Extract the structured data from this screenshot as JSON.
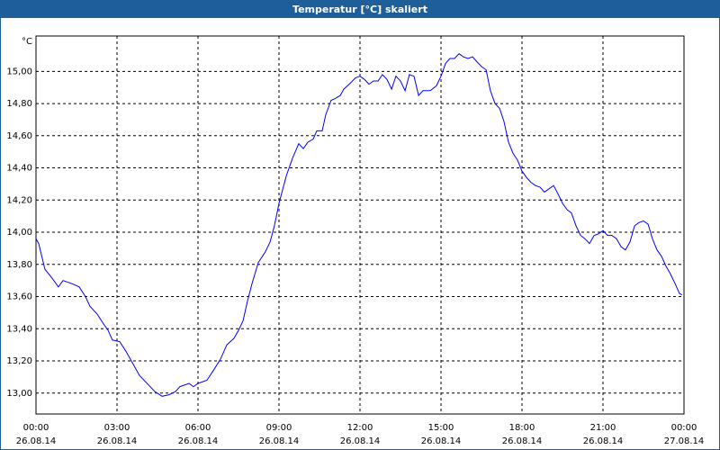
{
  "chart_data": {
    "type": "line",
    "title": "Temperatur [°C] skaliert",
    "y_label": "°C",
    "color": "#0000ff",
    "grid": true,
    "x": [
      0,
      0.1,
      0.33,
      0.57,
      0.83,
      1,
      1.33,
      1.6,
      1.83,
      2,
      2.27,
      2.5,
      2.67,
      2.83,
      3.1,
      3.33,
      3.6,
      3.83,
      4.17,
      4.4,
      4.67,
      4.93,
      5.17,
      5.33,
      5.67,
      5.83,
      6,
      6.33,
      6.57,
      6.83,
      7.07,
      7.33,
      7.5,
      7.67,
      7.83,
      8,
      8.23,
      8.5,
      8.67,
      8.83,
      9,
      9.27,
      9.5,
      9.73,
      9.9,
      10.07,
      10.27,
      10.4,
      10.6,
      10.73,
      10.93,
      11.07,
      11.27,
      11.4,
      11.6,
      11.83,
      12,
      12.17,
      12.33,
      12.5,
      12.67,
      12.83,
      13,
      13.17,
      13.33,
      13.5,
      13.67,
      13.83,
      14,
      14.17,
      14.33,
      14.6,
      14.83,
      15,
      15.17,
      15.33,
      15.5,
      15.67,
      15.83,
      16,
      16.17,
      16.33,
      16.5,
      16.67,
      16.83,
      17,
      17.17,
      17.33,
      17.5,
      17.67,
      17.83,
      18,
      18.17,
      18.33,
      18.5,
      18.67,
      18.83,
      19,
      19.17,
      19.33,
      19.5,
      19.67,
      19.83,
      20,
      20.17,
      20.33,
      20.5,
      20.67,
      20.83,
      21,
      21.17,
      21.33,
      21.5,
      21.67,
      21.83,
      22,
      22.17,
      22.33,
      22.5,
      22.67,
      22.83,
      23,
      23.17,
      23.33,
      23.5,
      23.67,
      23.83,
      23.93
    ],
    "values": [
      13.96,
      13.93,
      13.77,
      13.72,
      13.66,
      13.7,
      13.68,
      13.66,
      13.6,
      13.54,
      13.49,
      13.43,
      13.39,
      13.33,
      13.32,
      13.26,
      13.18,
      13.11,
      13.05,
      13.01,
      12.98,
      12.99,
      13.01,
      13.04,
      13.06,
      13.04,
      13.06,
      13.08,
      13.14,
      13.21,
      13.3,
      13.34,
      13.39,
      13.45,
      13.57,
      13.68,
      13.81,
      13.88,
      13.94,
      14.04,
      14.18,
      14.35,
      14.46,
      14.55,
      14.52,
      14.56,
      14.58,
      14.63,
      14.63,
      14.73,
      14.82,
      14.83,
      14.85,
      14.89,
      14.92,
      14.96,
      14.97,
      14.95,
      14.92,
      14.94,
      14.94,
      14.98,
      14.95,
      14.89,
      14.97,
      14.94,
      14.88,
      14.98,
      14.97,
      14.85,
      14.88,
      14.88,
      14.91,
      14.97,
      15.05,
      15.08,
      15.08,
      15.11,
      15.09,
      15.08,
      15.09,
      15.06,
      15.03,
      15.01,
      14.88,
      14.8,
      14.77,
      14.69,
      14.56,
      14.49,
      14.45,
      14.38,
      14.34,
      14.31,
      14.29,
      14.28,
      14.25,
      14.27,
      14.29,
      14.24,
      14.18,
      14.14,
      14.12,
      14.04,
      13.98,
      13.96,
      13.93,
      13.98,
      13.99,
      14.01,
      13.98,
      13.98,
      13.96,
      13.91,
      13.89,
      13.94,
      14.04,
      14.06,
      14.07,
      14.05,
      13.96,
      13.89,
      13.85,
      13.79,
      13.74,
      13.68,
      13.62,
      13.61
    ],
    "xlim": [
      0,
      24
    ],
    "xticks": [
      {
        "value": 0,
        "label": "00:00",
        "date": "26.08.14"
      },
      {
        "value": 3,
        "label": "03:00",
        "date": "26.08.14"
      },
      {
        "value": 6,
        "label": "06:00",
        "date": "26.08.14"
      },
      {
        "value": 9,
        "label": "09:00",
        "date": "26.08.14"
      },
      {
        "value": 12,
        "label": "12:00",
        "date": "26.08.14"
      },
      {
        "value": 15,
        "label": "15:00",
        "date": "26.08.14"
      },
      {
        "value": 18,
        "label": "18:00",
        "date": "26.08.14"
      },
      {
        "value": 21,
        "label": "21:00",
        "date": "26.08.14"
      },
      {
        "value": 24,
        "label": "00:00",
        "date": "27.08.14"
      }
    ],
    "ylim": [
      12.87,
      15.22
    ],
    "yticks": [
      {
        "value": 13,
        "label": "13,00"
      },
      {
        "value": 13.2,
        "label": "13,20"
      },
      {
        "value": 13.4,
        "label": "13,40"
      },
      {
        "value": 13.6,
        "label": "13,60"
      },
      {
        "value": 13.8,
        "label": "13,80"
      },
      {
        "value": 14,
        "label": "14,00"
      },
      {
        "value": 14.2,
        "label": "14,20"
      },
      {
        "value": 14.4,
        "label": "14,40"
      },
      {
        "value": 14.6,
        "label": "14,60"
      },
      {
        "value": 14.8,
        "label": "14,80"
      },
      {
        "value": 15,
        "label": "15,00"
      }
    ]
  }
}
